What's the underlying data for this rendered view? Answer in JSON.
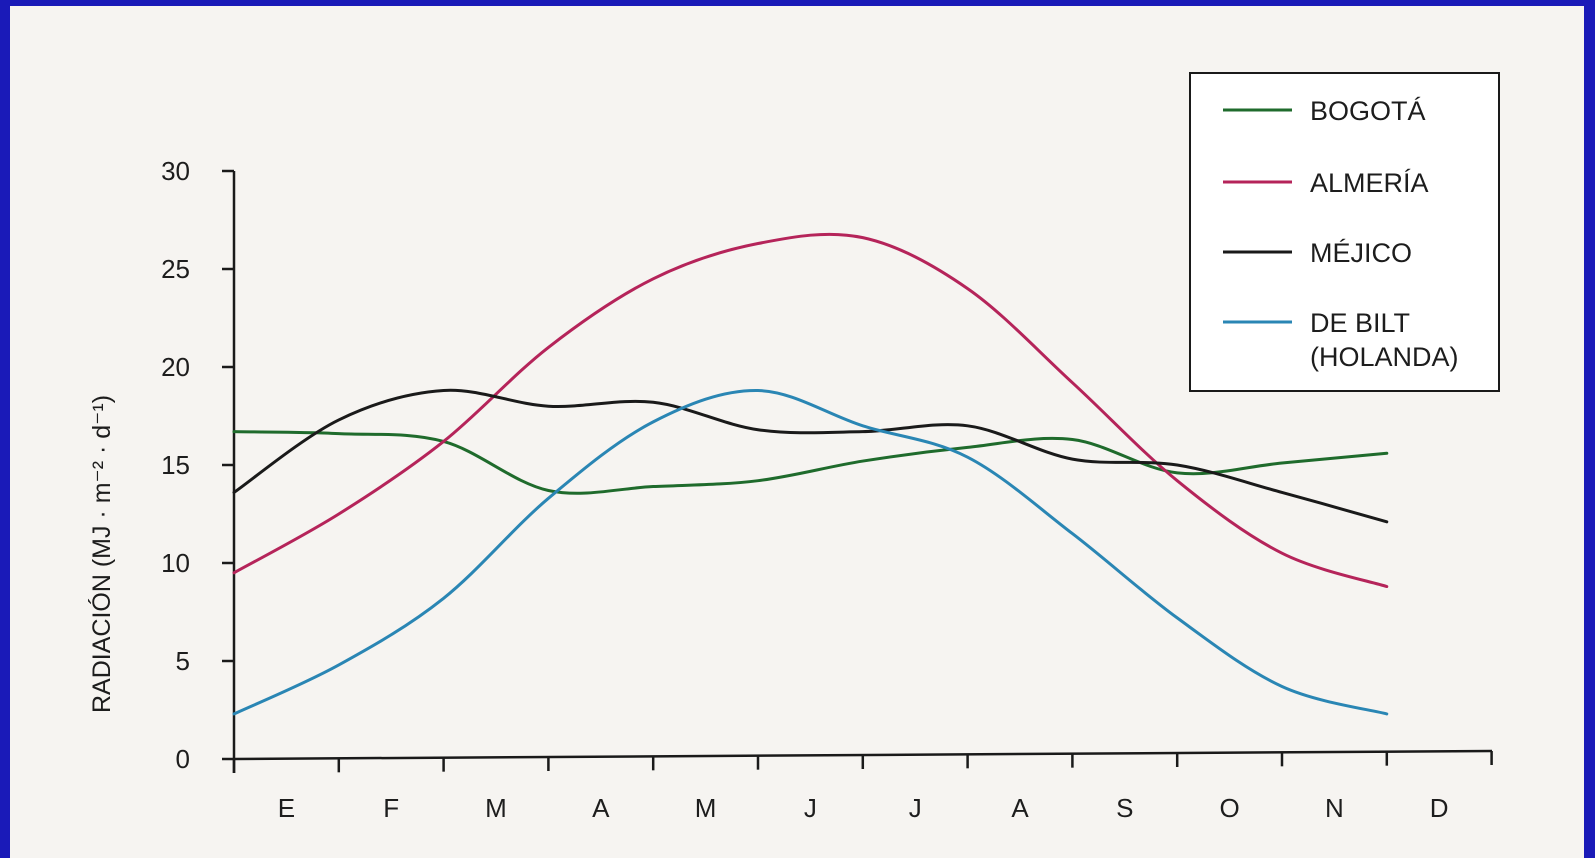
{
  "chart_data": {
    "type": "line",
    "title": "",
    "xlabel": "",
    "ylabel": "RADIACIÓN (MJ · m⁻² · d⁻¹)",
    "ylim": [
      0,
      30
    ],
    "yticks": [
      0,
      5,
      10,
      15,
      20,
      25,
      30
    ],
    "categories": [
      "E",
      "F",
      "M",
      "A",
      "M",
      "J",
      "J",
      "A",
      "S",
      "O",
      "N",
      "D"
    ],
    "legend_position": "top-right",
    "grid": false,
    "series": [
      {
        "name": "BOGOTÁ",
        "color": "#1f6b2c",
        "values": [
          16.7,
          16.6,
          16.2,
          13.7,
          13.9,
          14.2,
          15.2,
          15.9,
          16.3,
          14.6,
          15.1,
          15.6
        ]
      },
      {
        "name": "ALMERÍA",
        "color": "#b5245a",
        "values": [
          9.5,
          12.5,
          16.2,
          21.0,
          24.5,
          26.3,
          26.6,
          24.0,
          19.2,
          14.2,
          10.5,
          8.8
        ]
      },
      {
        "name": "MÉJICO",
        "color": "#1a1a1a",
        "values": [
          13.6,
          17.3,
          18.8,
          18.0,
          18.2,
          16.8,
          16.7,
          17.0,
          15.3,
          15.0,
          13.6,
          12.1
        ]
      },
      {
        "name_lines": [
          "DE BILT",
          "(HOLANDA)"
        ],
        "color": "#2a86b4",
        "values": [
          2.3,
          4.8,
          8.2,
          13.3,
          17.2,
          18.8,
          17.0,
          15.4,
          11.5,
          7.2,
          3.7,
          2.3
        ]
      }
    ]
  }
}
